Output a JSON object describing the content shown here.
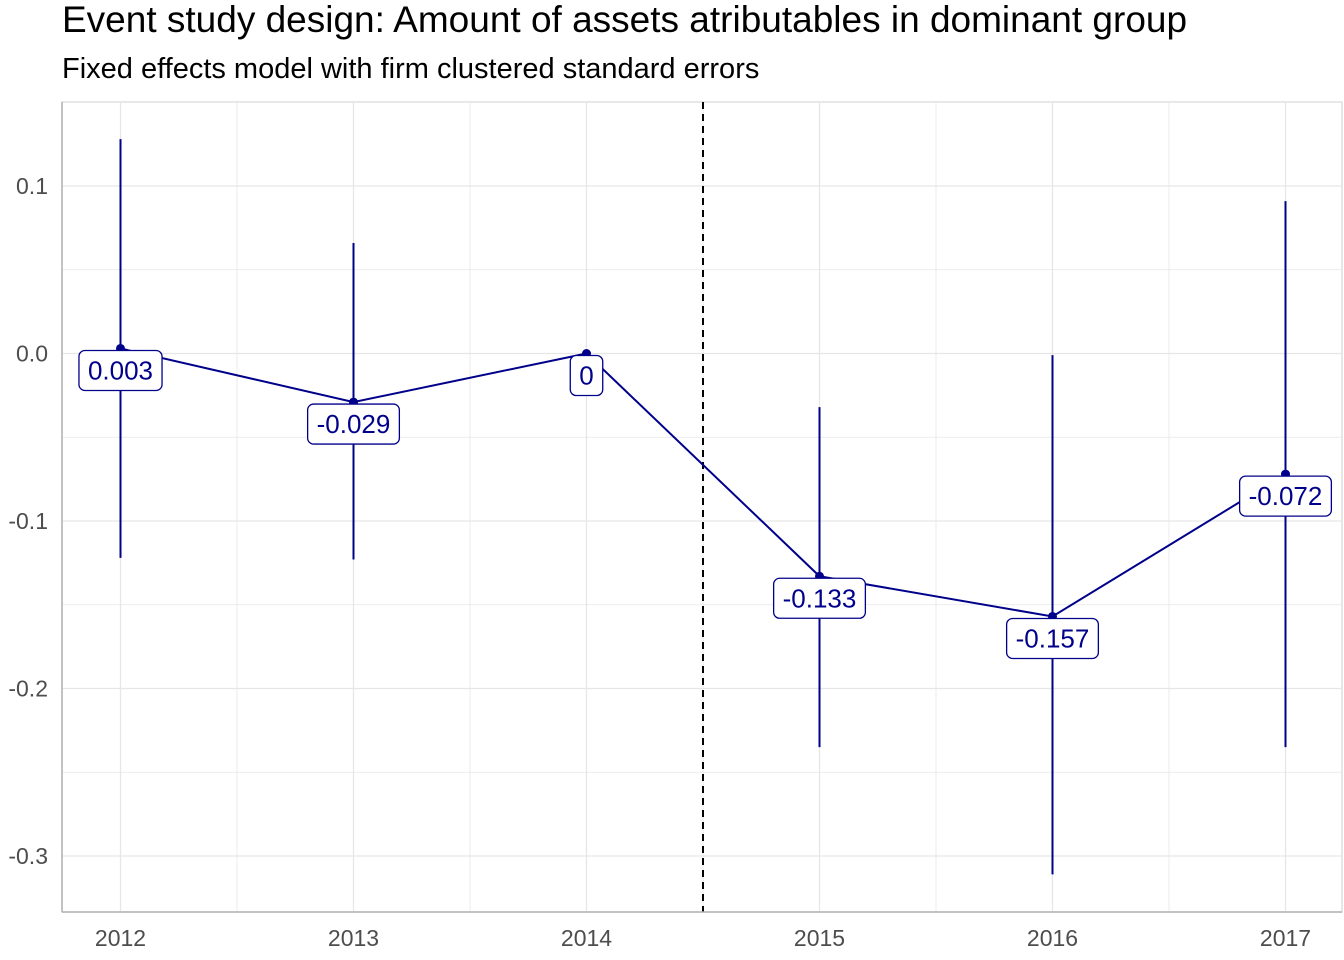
{
  "chart_data": {
    "type": "line",
    "title": "Event study design: Amount of assets atributables in dominant group",
    "subtitle": "Fixed effects model with firm clustered standard errors",
    "xlabel": "",
    "ylabel": "",
    "x": [
      "2012",
      "2013",
      "2014",
      "2015",
      "2016",
      "2017"
    ],
    "series": [
      {
        "values": [
          0.003,
          -0.029,
          0,
          -0.133,
          -0.157,
          -0.072
        ],
        "ci_low": [
          -0.122,
          -0.123,
          0,
          -0.235,
          -0.311,
          -0.235
        ],
        "ci_high": [
          0.128,
          0.066,
          0,
          -0.032,
          -0.001,
          0.091
        ],
        "labels": [
          "0.003",
          "-0.029",
          "0",
          "-0.133",
          "-0.157",
          "-0.072"
        ],
        "color": "#00008b"
      }
    ],
    "ylim": [
      -0.334,
      0.15
    ],
    "y_ticks": [
      0.1,
      0.0,
      -0.1,
      -0.2,
      -0.3
    ],
    "y_tick_labels": [
      "0.1",
      "0.0",
      "-0.1",
      "-0.2",
      "-0.3"
    ],
    "vline_x": 2014.5,
    "vline_style": "dashed",
    "grid": true,
    "legend": "none"
  }
}
